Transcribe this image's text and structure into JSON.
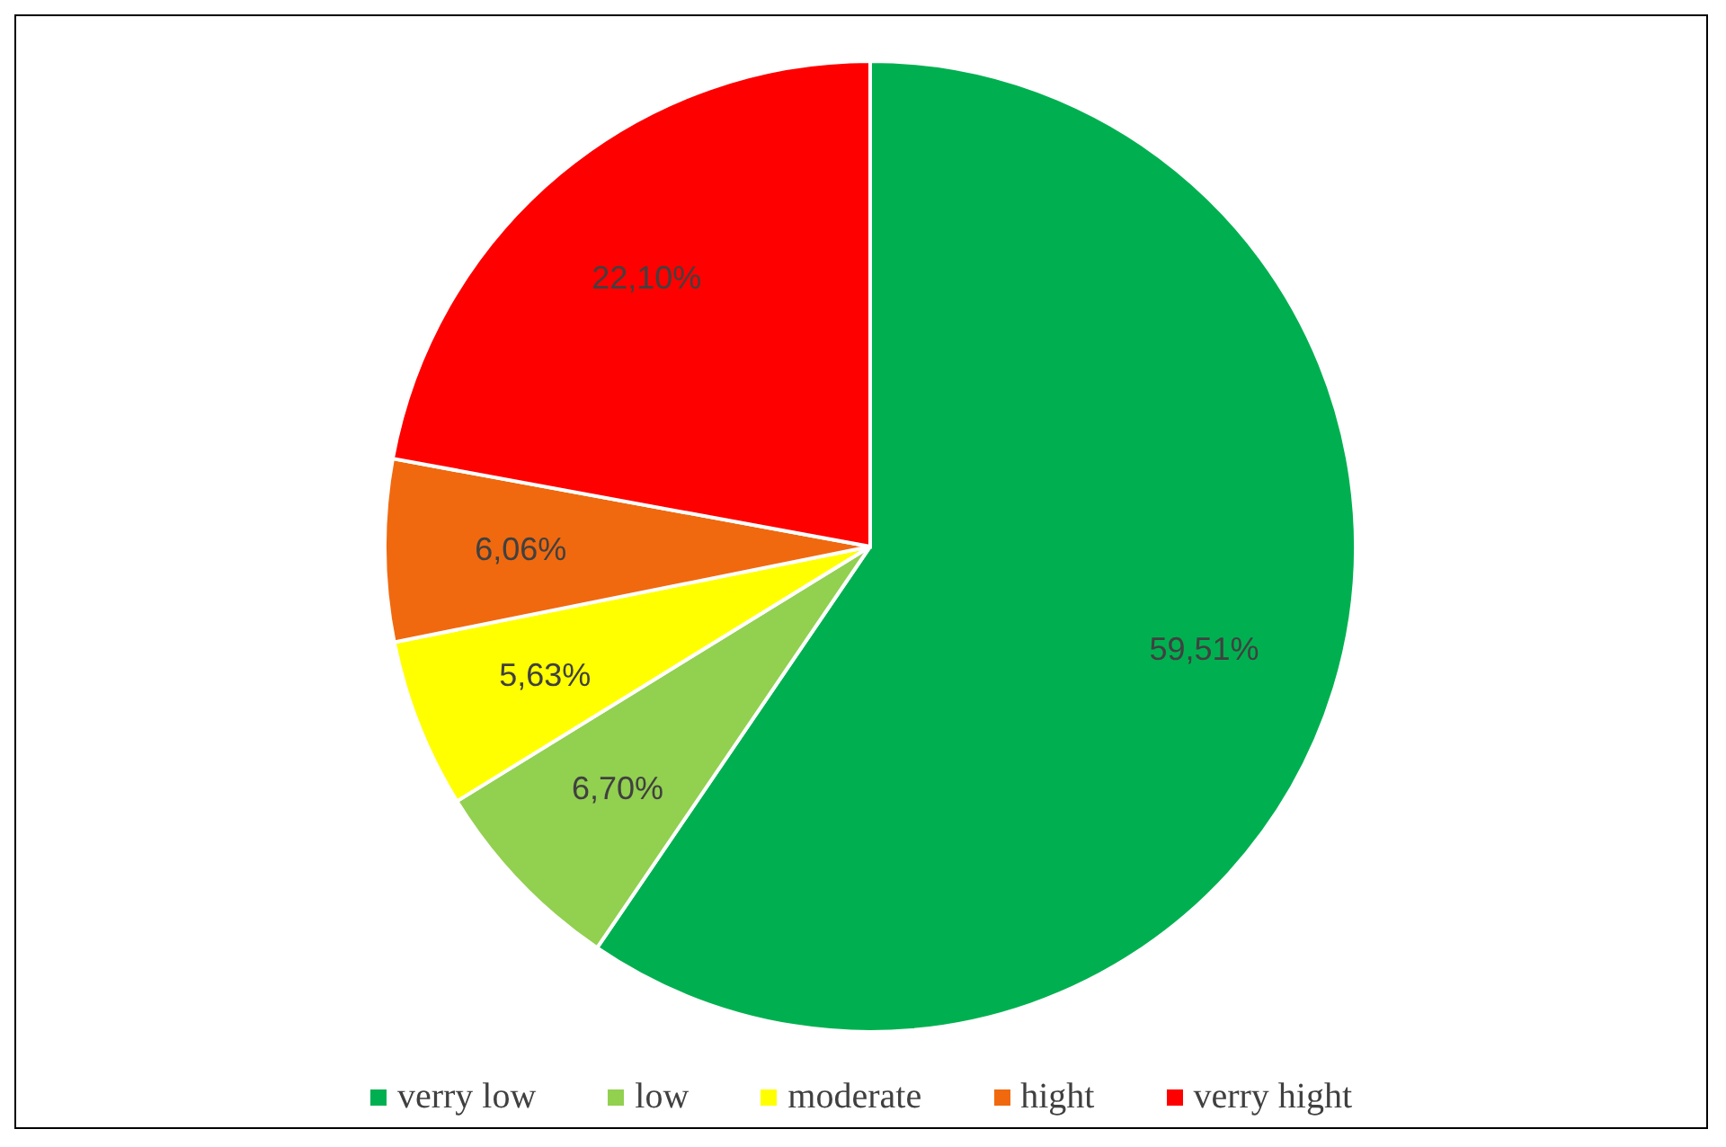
{
  "chart_data": {
    "type": "pie",
    "categories": [
      "verry low",
      "low",
      "moderate",
      "hight",
      "verry hight"
    ],
    "values": [
      59.51,
      6.7,
      5.63,
      6.06,
      22.1
    ],
    "colors": [
      "#00b050",
      "#92d050",
      "#ffff00",
      "#f0690f",
      "#ff0000"
    ],
    "value_labels": [
      "59,51%",
      "6,70%",
      "5,63%",
      "6,06%",
      "22,10%"
    ],
    "legend": "bottom"
  }
}
